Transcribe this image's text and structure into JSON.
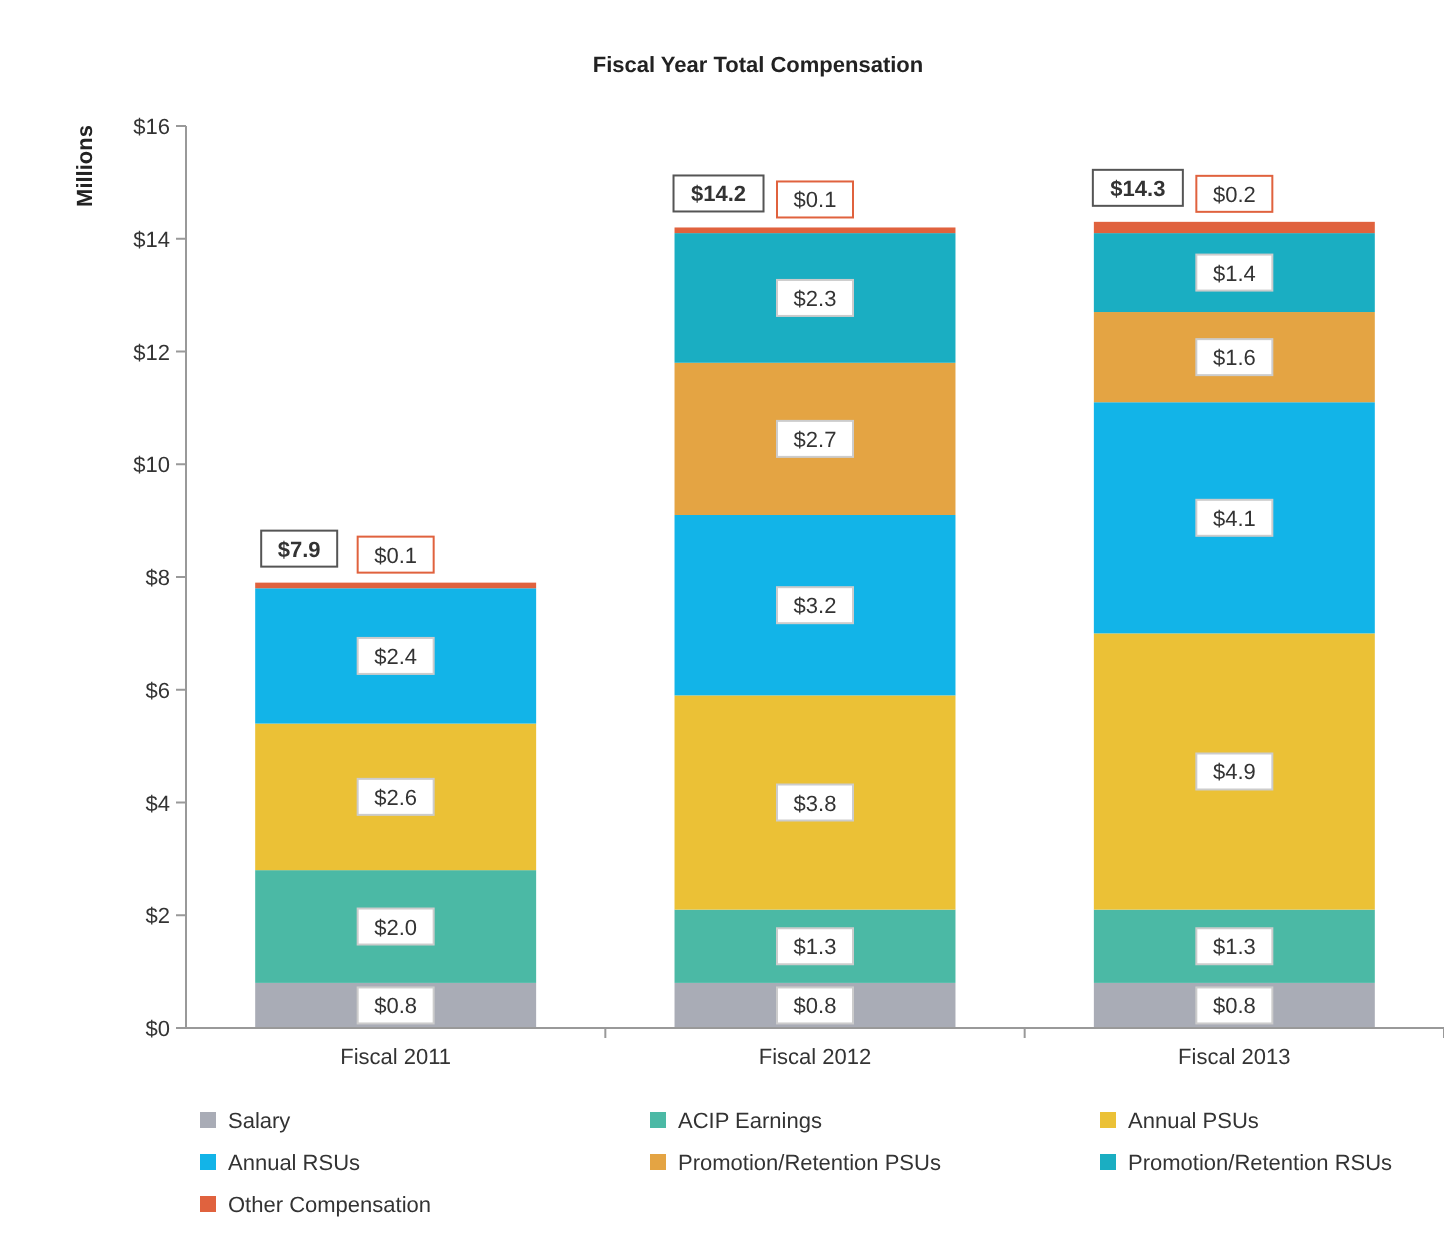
{
  "chart_data": {
    "type": "bar",
    "title": "Fiscal Year Total Compensation",
    "ylabel": "Millions",
    "stacked": true,
    "categories": [
      "Fiscal 2011",
      "Fiscal 2012",
      "Fiscal 2013"
    ],
    "series": [
      {
        "name": "Salary",
        "color": "#a9acb6",
        "values": [
          0.8,
          0.8,
          0.8
        ],
        "value_labels": [
          "$0.8",
          "$0.8",
          "$0.8"
        ]
      },
      {
        "name": "ACIP Earnings",
        "color": "#4bb9a5",
        "values": [
          2.0,
          1.3,
          1.3
        ],
        "value_labels": [
          "$2.0",
          "$1.3",
          "$1.3"
        ]
      },
      {
        "name": "Annual PSUs",
        "color": "#ebc136",
        "values": [
          2.6,
          3.8,
          4.9
        ],
        "value_labels": [
          "$2.6",
          "$3.8",
          "$4.9"
        ]
      },
      {
        "name": "Annual RSUs",
        "color": "#12b4e8",
        "values": [
          2.4,
          3.2,
          4.1
        ],
        "value_labels": [
          "$2.4",
          "$3.2",
          "$4.1"
        ]
      },
      {
        "name": "Promotion/Retention PSUs",
        "color": "#e4a443",
        "values": [
          null,
          2.7,
          1.6
        ],
        "value_labels": [
          null,
          "$2.7",
          "$1.6"
        ]
      },
      {
        "name": "Promotion/Retention RSUs",
        "color": "#1aaec2",
        "values": [
          null,
          2.3,
          1.4
        ],
        "value_labels": [
          null,
          "$2.3",
          "$1.4"
        ]
      },
      {
        "name": "Other Compensation",
        "color": "#e0623e",
        "values": [
          0.1,
          0.1,
          0.2
        ],
        "value_labels": [
          "$0.1",
          "$0.1",
          "$0.2"
        ]
      }
    ],
    "totals": [
      "$7.9",
      "$14.2",
      "$14.3"
    ],
    "ylim": [
      0,
      16
    ],
    "yticks": [
      {
        "value": 0,
        "label": "$0"
      },
      {
        "value": 2,
        "label": "$2"
      },
      {
        "value": 4,
        "label": "$4"
      },
      {
        "value": 6,
        "label": "$6"
      },
      {
        "value": 8,
        "label": "$8"
      },
      {
        "value": 10,
        "label": "$10"
      },
      {
        "value": 12,
        "label": "$12"
      },
      {
        "value": 14,
        "label": "$14"
      },
      {
        "value": 16,
        "label": "$16"
      }
    ],
    "grid": false,
    "legend": "bottom"
  }
}
